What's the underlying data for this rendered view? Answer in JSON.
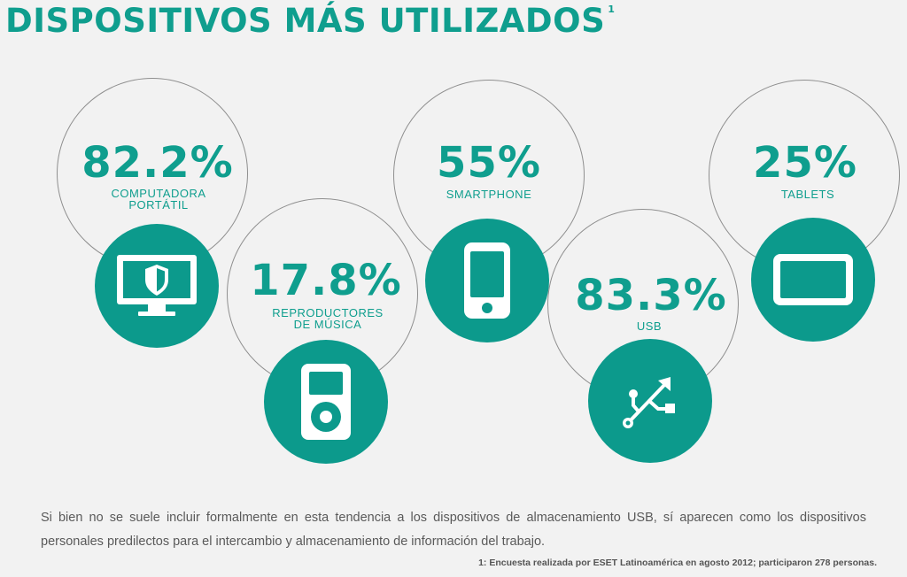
{
  "title": "DISPOSITIVOS MÁS UTILIZADOS",
  "title_footnote": "1",
  "chart_data": {
    "type": "bubble-percent",
    "title": "DISPOSITIVOS MÁS UTILIZADOS",
    "unit": "%",
    "items": [
      {
        "category": "COMPUTADORA PORTÁTIL",
        "value": 82.2,
        "display": "82.2%",
        "icon": "laptop-shield-icon",
        "label_lines": [
          "COMPUTADORA",
          "PORTÁTIL"
        ]
      },
      {
        "category": "REPRODUCTORES DE MÚSICA",
        "value": 17.8,
        "display": "17.8%",
        "icon": "music-player-icon",
        "label_lines": [
          "REPRODUCTORES",
          "DE MÚSICA"
        ]
      },
      {
        "category": "SMARTPHONE",
        "value": 55,
        "display": "55%",
        "icon": "smartphone-icon",
        "label_lines": [
          "SMARTPHONE"
        ]
      },
      {
        "category": "USB",
        "value": 83.3,
        "display": "83.3%",
        "icon": "usb-icon",
        "label_lines": [
          "USB"
        ]
      },
      {
        "category": "TABLETS",
        "value": 25,
        "display": "25%",
        "icon": "tablet-icon",
        "label_lines": [
          "TABLETS"
        ]
      }
    ]
  },
  "colors": {
    "accent": "#0f9e8e",
    "disc": "#0c9a8c",
    "ring": "#8f8f8f",
    "background": "#f2f2f2"
  },
  "body_text": "Si bien no se suele incluir formalmente en esta tendencia a los dispositivos de almacenamiento USB, sí aparecen como los dispositivos personales predilectos para el intercambio y almacenamiento de información del trabajo.",
  "footnote": "1: Encuesta realizada por ESET Latinoamérica en agosto 2012; participaron 278 personas."
}
